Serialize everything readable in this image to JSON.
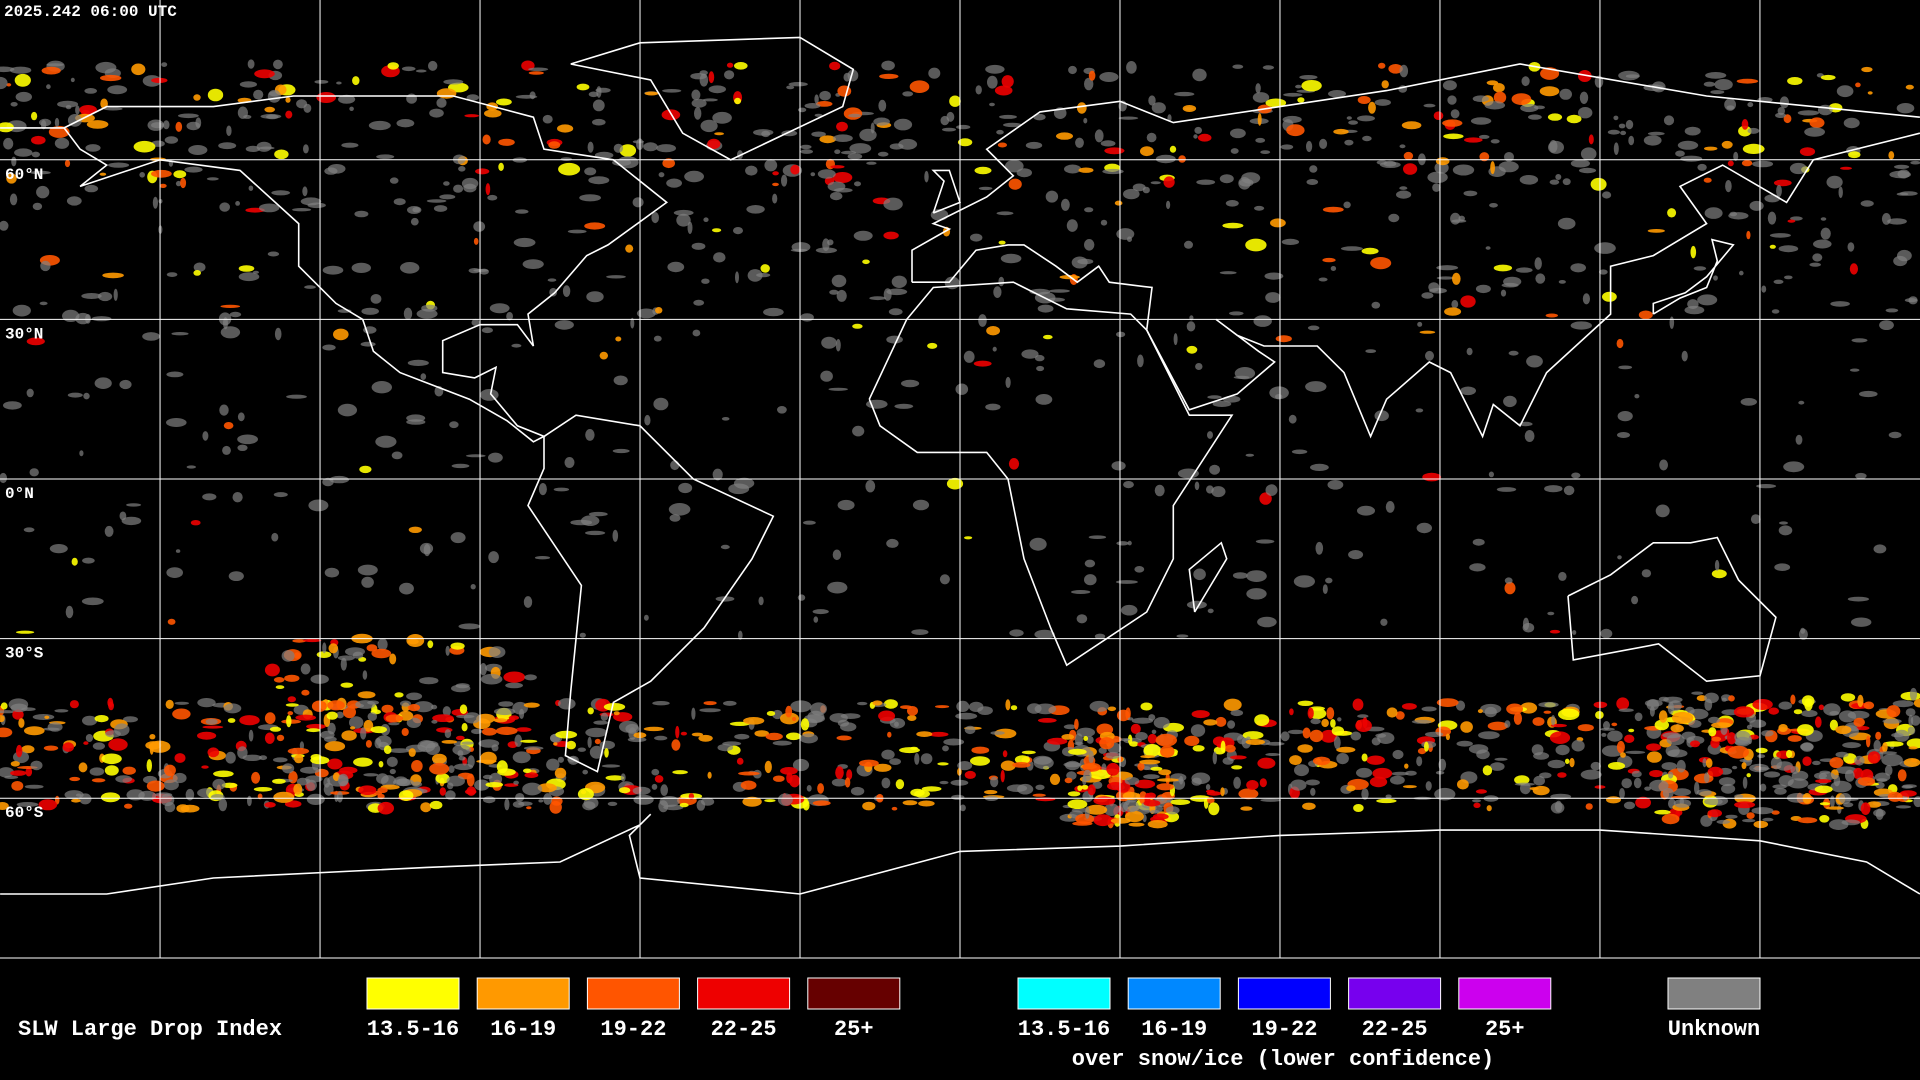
{
  "timestamp": "2025.242 06:00 UTC",
  "latitude_labels": [
    "60°N",
    "30°N",
    "0°N",
    "30°S",
    "60°S"
  ],
  "legend": {
    "title": "SLW Large Drop Index",
    "items": [
      {
        "label": "13.5-16",
        "color": "#ffff00"
      },
      {
        "label": "16-19",
        "color": "#ff9900"
      },
      {
        "label": "19-22",
        "color": "#ff5500"
      },
      {
        "label": "22-25",
        "color": "#ee0000"
      },
      {
        "label": "25+",
        "color": "#660000"
      }
    ],
    "snow_ice_items": [
      {
        "label": "13.5-16",
        "color": "#00ffff"
      },
      {
        "label": "16-19",
        "color": "#0088ff"
      },
      {
        "label": "19-22",
        "color": "#0000ff"
      },
      {
        "label": "22-25",
        "color": "#7700ee"
      },
      {
        "label": "25+",
        "color": "#cc00ee"
      }
    ],
    "snow_ice_caption": "over snow/ice (lower confidence)",
    "unknown": {
      "label": "Unknown",
      "color": "#808080"
    }
  }
}
